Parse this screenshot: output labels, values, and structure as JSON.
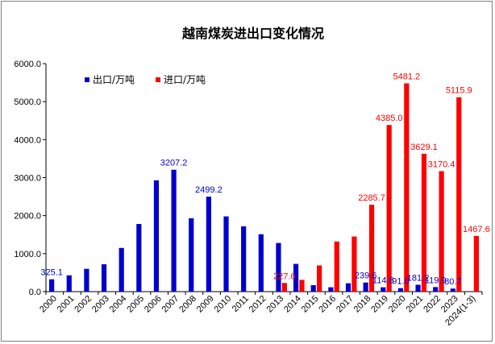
{
  "chart_data": {
    "type": "bar",
    "title": "越南煤炭进出口变化情况",
    "categories": [
      "2000",
      "2001",
      "2002",
      "2003",
      "2004",
      "2005",
      "2006",
      "2007",
      "2008",
      "2009",
      "2010",
      "2011",
      "2012",
      "2013",
      "2014",
      "2015",
      "2016",
      "2017",
      "2018",
      "2019",
      "2020",
      "2021",
      "2022",
      "2023",
      "2024(1-3)"
    ],
    "series": [
      {
        "name": "出口/万吨",
        "color": "#0000cc",
        "values": [
          325.1,
          430,
          600,
          720,
          1150,
          1780,
          2930,
          3207.2,
          1930,
          2499.2,
          1980,
          1720,
          1510,
          1280,
          730,
          170,
          115,
          220,
          239.6,
          114.8,
          91.0,
          181.2,
          119.9,
          80.7,
          null
        ],
        "labels": {
          "0": "325.1",
          "7": "3207.2",
          "9": "2499.2",
          "18": "239.6",
          "19": "114.8",
          "20": "91.0",
          "21": "181.2",
          "22": "119.9",
          "23": "80.7"
        }
      },
      {
        "name": "进口/万吨",
        "color": "#ff0000",
        "values": [
          null,
          null,
          null,
          null,
          null,
          null,
          null,
          null,
          null,
          null,
          null,
          null,
          null,
          227.6,
          310,
          690,
          1320,
          1450,
          2285.7,
          4385.0,
          5481.2,
          3629.1,
          3170.4,
          5115.9,
          1467.6
        ],
        "labels": {
          "13": "227.6",
          "18": "2285.7",
          "19": "4385.0",
          "20": "5481.2",
          "21": "3629.1",
          "22": "3170.4",
          "23": "5115.9",
          "24": "1467.6"
        }
      }
    ],
    "ylim": [
      0,
      6000
    ],
    "yticks": [
      "0.0",
      "1000.0",
      "2000.0",
      "3000.0",
      "4000.0",
      "5000.0",
      "6000.0"
    ],
    "xlabel": "",
    "ylabel": "",
    "grid": false,
    "legend": "top-left"
  }
}
